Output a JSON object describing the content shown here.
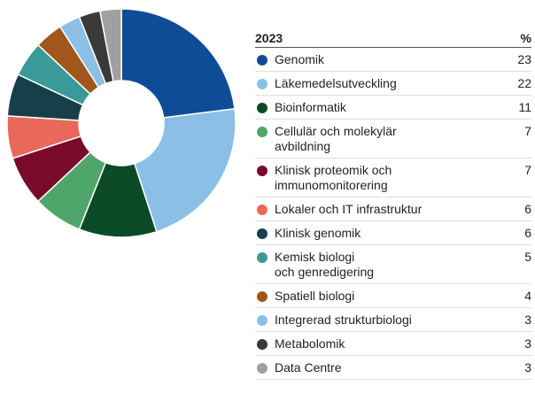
{
  "chart_data": {
    "type": "donut",
    "title": "2023",
    "value_header": "%",
    "categories": [
      "Genomik",
      "Läkemedelsutveckling",
      "Bioinformatik",
      "Cellulär och molekylär\navbildning",
      "Klinisk proteomik och\nimmunomonitorering",
      "Lokaler och IT infrastruktur",
      "Klinisk genomik",
      "Kemisk biologi\noch genredigering",
      "Spatiell biologi",
      "Integrerad strukturbiologi",
      "Metabolomik",
      "Data Centre"
    ],
    "values": [
      23,
      22,
      11,
      7,
      7,
      6,
      6,
      5,
      4,
      3,
      3,
      3
    ],
    "colors": [
      "#0f4c97",
      "#8bbfe6",
      "#0b4a26",
      "#4fa66a",
      "#7a0a2a",
      "#e8695a",
      "#173f4a",
      "#3a9a9a",
      "#a0561c",
      "#8bbfe6",
      "#3a3a3a",
      "#a0a0a0"
    ]
  }
}
